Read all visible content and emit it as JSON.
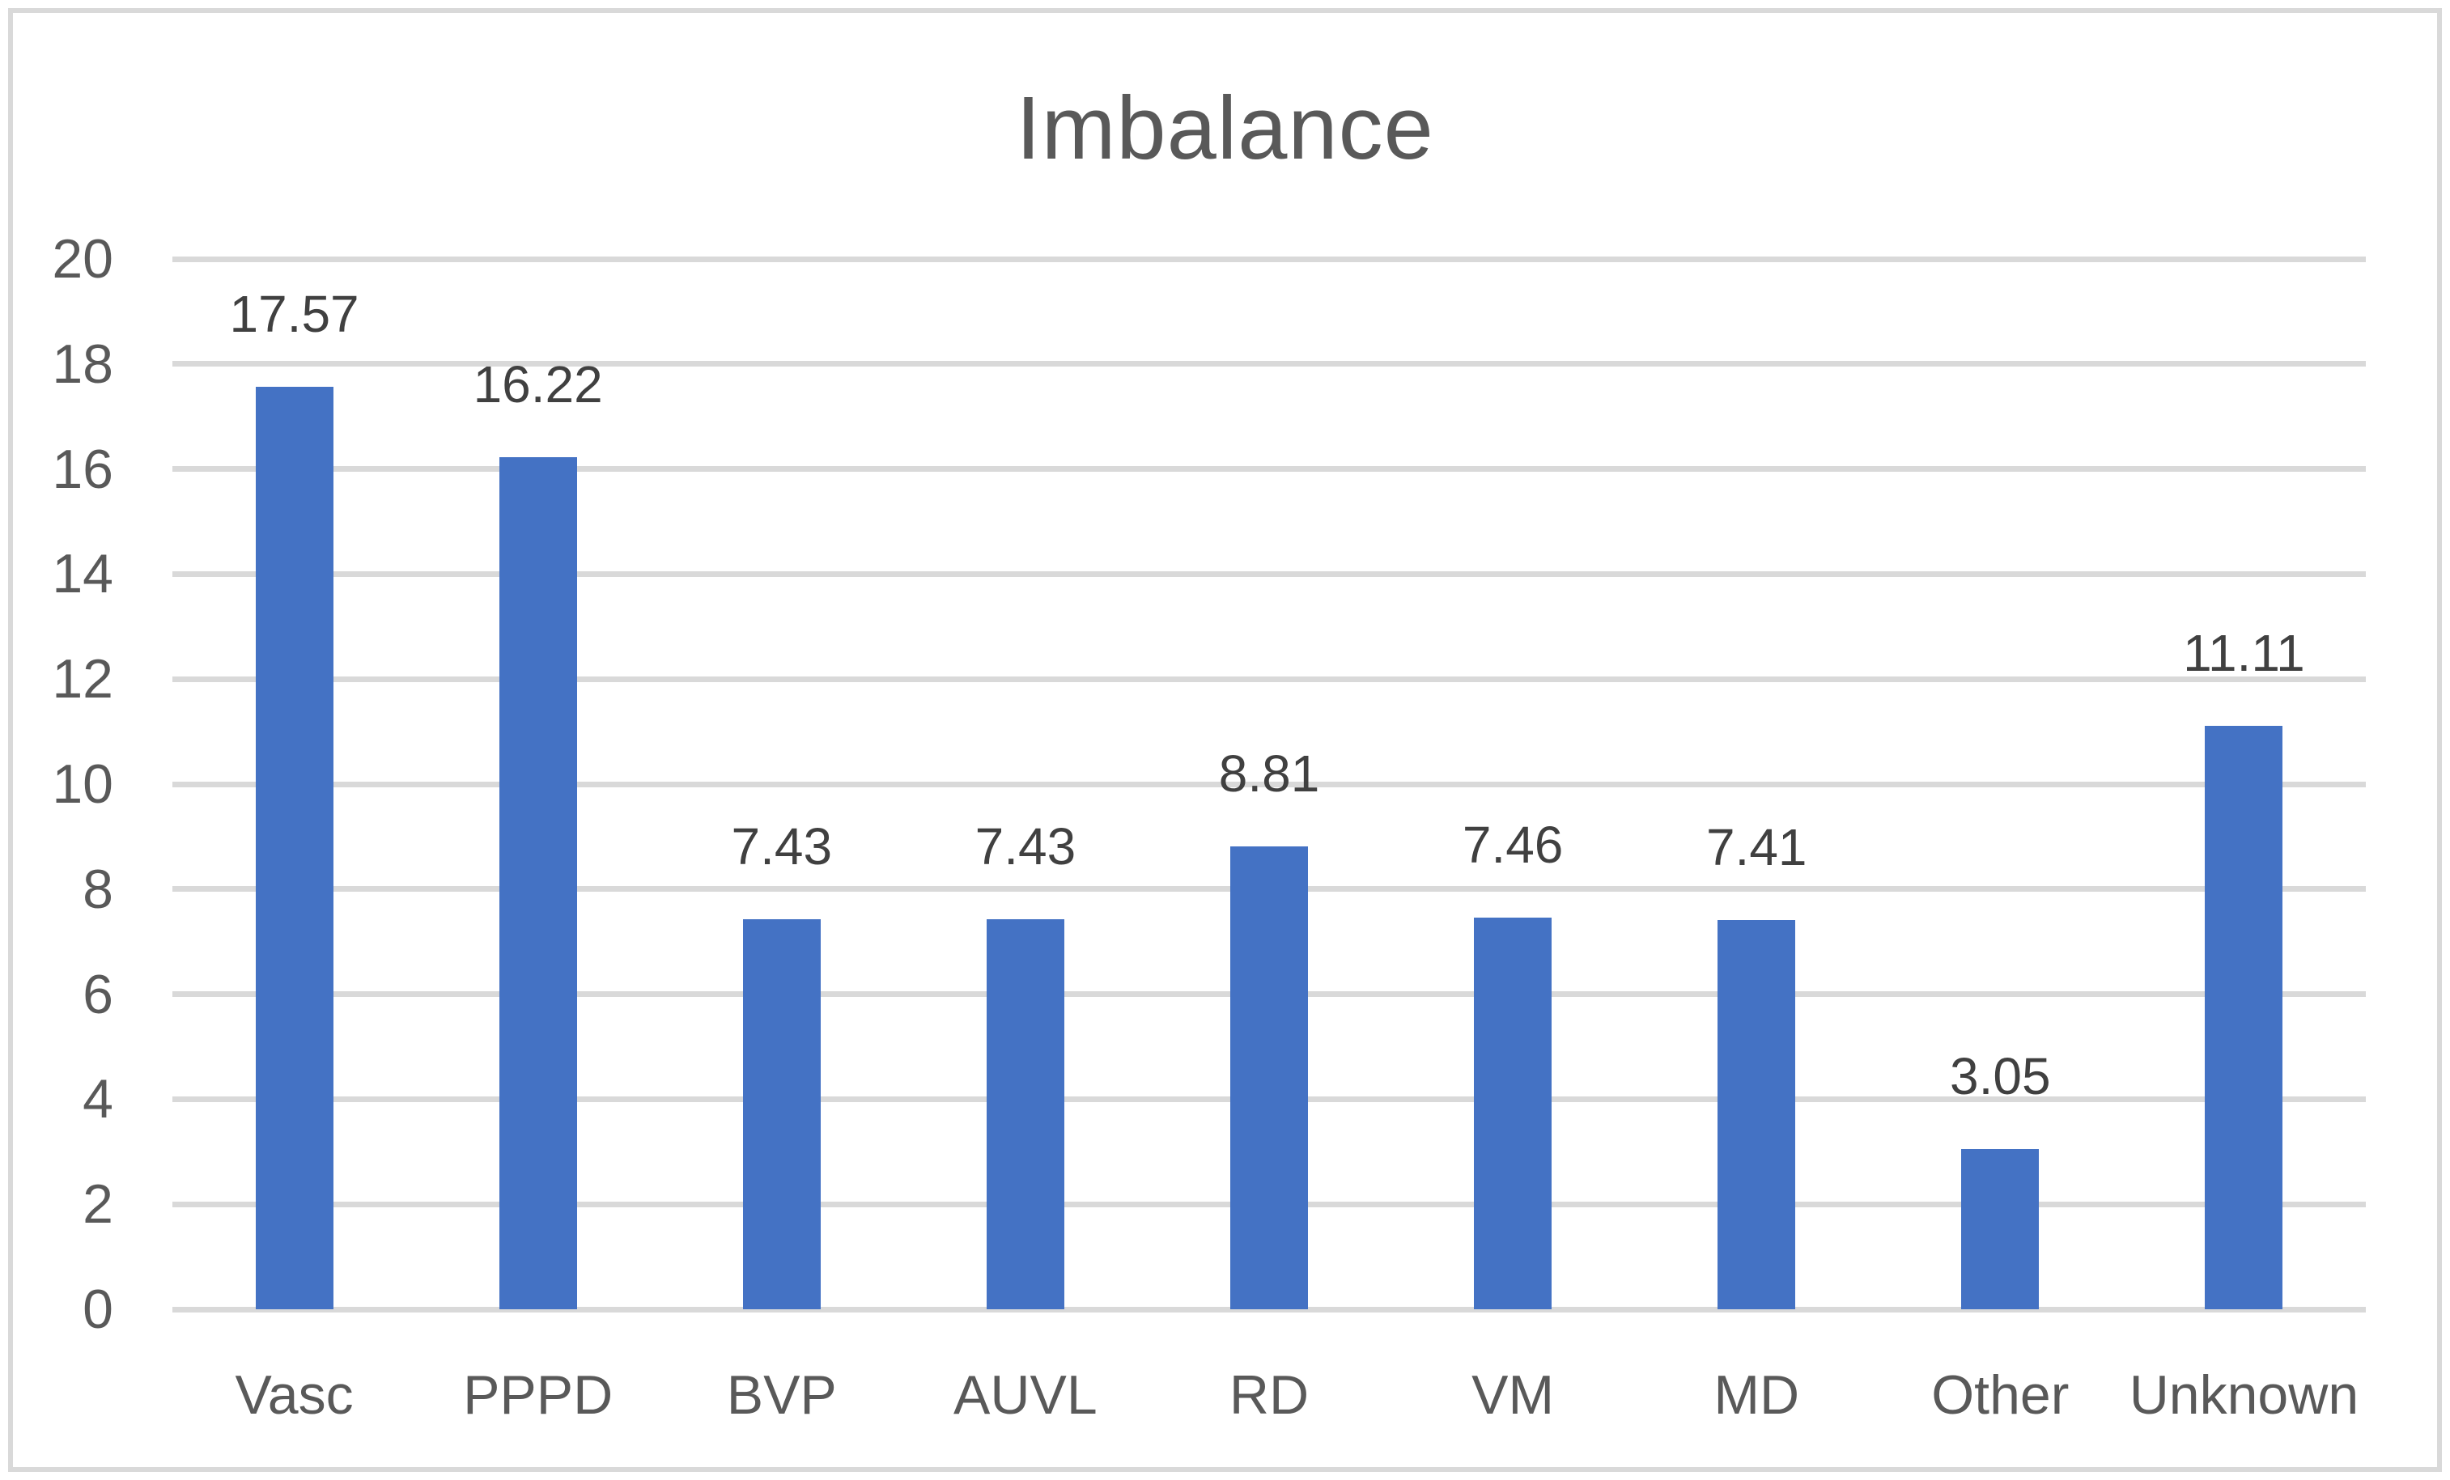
{
  "window": {
    "background_color": "#ffffff",
    "frame_border_color": "#d9d9d9"
  },
  "chart_data": {
    "type": "bar",
    "title": "Imbalance",
    "categories": [
      "Vasc",
      "PPPD",
      "BVP",
      "AUVL",
      "RD",
      "VM",
      "MD",
      "Other",
      "Unknown"
    ],
    "values": [
      17.57,
      16.22,
      7.43,
      7.43,
      8.81,
      7.46,
      7.41,
      3.05,
      11.11
    ],
    "data_labels": [
      "17.57",
      "16.22",
      "7.43",
      "7.43",
      "8.81",
      "7.46",
      "7.41",
      "3.05",
      "11.11"
    ],
    "xlabel": "",
    "ylabel": "",
    "ylim": [
      0,
      20
    ],
    "yticks": [
      0,
      2,
      4,
      6,
      8,
      10,
      12,
      14,
      16,
      18,
      20
    ],
    "grid": true,
    "legend_position": "none",
    "bar_color": "#4472C4",
    "gridline_color": "#D9D9D9",
    "title_color": "#595959",
    "axis_label_color": "#595959",
    "data_label_color": "#404040"
  }
}
